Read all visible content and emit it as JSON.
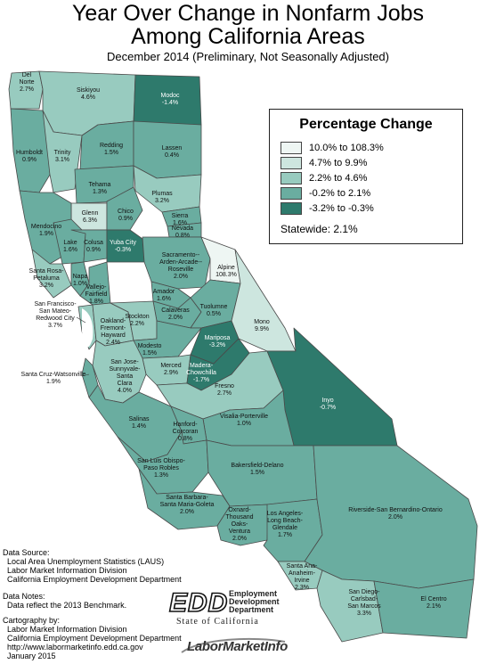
{
  "title_line_1": "Year Over Change in Nonfarm Jobs",
  "title_line_2": "Among California Areas",
  "subtitle": "December 2014 (Preliminary, Not Seasonally Adjusted)",
  "legend": {
    "title": "Percentage Change",
    "items": [
      {
        "label": "10.0% to 108.3%",
        "color": "#eef6f3"
      },
      {
        "label": "4.7% to 9.9%",
        "color": "#cde6df"
      },
      {
        "label": "2.2% to 4.6%",
        "color": "#98cbbf"
      },
      {
        "label": "-0.2% to 2.1%",
        "color": "#6aada0"
      },
      {
        "label": "-3.2% to -0.3%",
        "color": "#2e7a6c"
      }
    ],
    "statewide": "Statewide: 2.1%"
  },
  "regions": [
    {
      "id": "del-norte",
      "name": "Del\nNorte",
      "value": "2.7%",
      "bin": 2
    },
    {
      "id": "siskiyou",
      "name": "Siskiyou",
      "value": "4.6%",
      "bin": 2
    },
    {
      "id": "modoc",
      "name": "Modoc",
      "value": "-1.4%",
      "bin": 4
    },
    {
      "id": "humboldt",
      "name": "Humboldt",
      "value": "0.9%",
      "bin": 3
    },
    {
      "id": "trinity",
      "name": "Trinity",
      "value": "3.1%",
      "bin": 2
    },
    {
      "id": "redding",
      "name": "Redding",
      "value": "1.5%",
      "bin": 3
    },
    {
      "id": "lassen",
      "name": "Lassen",
      "value": "0.4%",
      "bin": 3
    },
    {
      "id": "tehama",
      "name": "Tehama",
      "value": "1.3%",
      "bin": 3
    },
    {
      "id": "plumas",
      "name": "Plumas",
      "value": "3.2%",
      "bin": 2
    },
    {
      "id": "glenn",
      "name": "Glenn",
      "value": "6.3%",
      "bin": 1
    },
    {
      "id": "chico",
      "name": "Chico",
      "value": "0.9%",
      "bin": 3
    },
    {
      "id": "sierra",
      "name": "Sierra",
      "value": "1.6%",
      "bin": 3
    },
    {
      "id": "mendocino",
      "name": "Mendocino",
      "value": "1.9%",
      "bin": 3
    },
    {
      "id": "lake",
      "name": "Lake",
      "value": "1.6%",
      "bin": 3
    },
    {
      "id": "colusa",
      "name": "Colusa",
      "value": "0.9%",
      "bin": 3
    },
    {
      "id": "yuba-city",
      "name": "Yuba City",
      "value": "-0.3%",
      "bin": 4
    },
    {
      "id": "nevada",
      "name": "Nevada",
      "value": "0.8%",
      "bin": 3
    },
    {
      "id": "sacramento",
      "name": "Sacramento--\nArden-Arcade--\nRoseville",
      "value": "2.0%",
      "bin": 3
    },
    {
      "id": "santa-rosa",
      "name": "Santa Rosa-\nPetaluma",
      "value": "3.2%",
      "bin": 2
    },
    {
      "id": "napa",
      "name": "Napa",
      "value": "1.0%",
      "bin": 3
    },
    {
      "id": "vallejo",
      "name": "Vallejo-\nFairfield",
      "value": "1.8%",
      "bin": 3
    },
    {
      "id": "alpine",
      "name": "Alpine",
      "value": "108.3%",
      "bin": 0
    },
    {
      "id": "amador",
      "name": "Amador",
      "value": "1.6%",
      "bin": 3
    },
    {
      "id": "calaveras",
      "name": "Calaveras",
      "value": "2.0%",
      "bin": 3
    },
    {
      "id": "tuolumne",
      "name": "Tuolumne",
      "value": "0.5%",
      "bin": 3
    },
    {
      "id": "mono",
      "name": "Mono",
      "value": "9.9%",
      "bin": 1
    },
    {
      "id": "sf",
      "name": "San Francisco-\nSan Mateo-\nRedwood City",
      "value": "3.7%",
      "bin": 2
    },
    {
      "id": "oakland",
      "name": "Oakland-\nFremont-\nHayward",
      "value": "2.4%",
      "bin": 2
    },
    {
      "id": "stockton",
      "name": "Stockton",
      "value": "2.2%",
      "bin": 2
    },
    {
      "id": "modesto",
      "name": "Modesto",
      "value": "1.5%",
      "bin": 3
    },
    {
      "id": "mariposa",
      "name": "Mariposa",
      "value": "-3.2%",
      "bin": 4
    },
    {
      "id": "merced",
      "name": "Merced",
      "value": "2.9%",
      "bin": 2
    },
    {
      "id": "madera",
      "name": "Madera-\nChowchilla",
      "value": "-1.7%",
      "bin": 4
    },
    {
      "id": "san-jose",
      "name": "San Jose-\nSunnyvale-\nSanta\nClara",
      "value": "4.0%",
      "bin": 2
    },
    {
      "id": "santa-cruz",
      "name": "Santa Cruz-Watsonville",
      "value": "1.9%",
      "bin": 3
    },
    {
      "id": "fresno",
      "name": "Fresno",
      "value": "2.7%",
      "bin": 2
    },
    {
      "id": "inyo",
      "name": "Inyo",
      "value": "-0.7%",
      "bin": 4
    },
    {
      "id": "salinas",
      "name": "Salinas",
      "value": "1.4%",
      "bin": 3
    },
    {
      "id": "visalia",
      "name": "Visalia-Porterville",
      "value": "1.0%",
      "bin": 3
    },
    {
      "id": "hanford",
      "name": "Hanford-\nCorcoran",
      "value": "0.8%",
      "bin": 3
    },
    {
      "id": "slo",
      "name": "San Luis Obispo-\nPaso Robles",
      "value": "1.3%",
      "bin": 3
    },
    {
      "id": "bakersfield",
      "name": "Bakersfield-Delano",
      "value": "1.5%",
      "bin": 3
    },
    {
      "id": "santa-barbara",
      "name": "Santa Barbara-\nSanta Maria-Goleta",
      "value": "2.0%",
      "bin": 3
    },
    {
      "id": "oxnard",
      "name": "Oxnard-\nThousand\nOaks-\nVentura",
      "value": "2.0%",
      "bin": 3
    },
    {
      "id": "la",
      "name": "Los Angeles-\nLong Beach-\nGlendale",
      "value": "1.7%",
      "bin": 3
    },
    {
      "id": "riverside",
      "name": "Riverside-San Bernardino-Ontario",
      "value": "2.0%",
      "bin": 3
    },
    {
      "id": "santa-ana",
      "name": "Santa Ana-\nAnaheim-\nIrvine",
      "value": "2.3%",
      "bin": 2
    },
    {
      "id": "san-diego",
      "name": "San Diego-\nCarlsbad-\nSan Marcos",
      "value": "3.3%",
      "bin": 2
    },
    {
      "id": "el-centro",
      "name": "El Centro",
      "value": "2.1%",
      "bin": 3
    }
  ],
  "data_source": {
    "heading": "Data Source:",
    "lines": [
      "Local Area Unemployment Statistics (LAUS)",
      "Labor Market Information Division",
      "California Employment Development Department"
    ]
  },
  "data_notes": {
    "heading": "Data Notes:",
    "lines": [
      "Data reflect the 2013 Benchmark."
    ]
  },
  "cartography": {
    "heading": "Cartography by:",
    "lines": [
      "Labor Market Information Division",
      "California Employment Development Department",
      "http://www.labormarketinfo.edd.ca.gov",
      "January 2015"
    ]
  },
  "edd_logo": {
    "letters": "EDD",
    "words": [
      "Employment",
      "Development",
      "Department"
    ],
    "state": "State of California"
  },
  "lmi_logo": "LaborMarketInfo"
}
